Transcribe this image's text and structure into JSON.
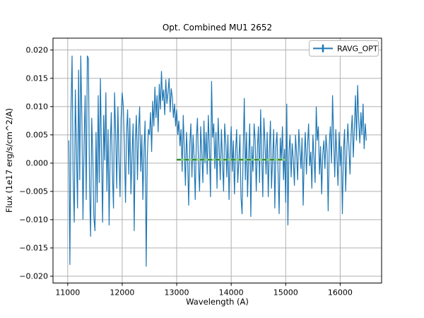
{
  "page": {
    "background": "#ffffff"
  },
  "chart_data": {
    "type": "line",
    "title": "Opt. Combined MU1 2652",
    "xlabel": "Wavelength (A)",
    "ylabel": "Flux (1e17 erg/s/cm^2/A)",
    "grid": true,
    "legend": {
      "label": "RAVG_OPT",
      "position": "upper right",
      "marker": "errorbar"
    },
    "xlim": [
      10730,
      16760
    ],
    "ylim": [
      -0.0212,
      0.0221
    ],
    "xticks": [
      11000,
      12000,
      13000,
      14000,
      15000,
      16000
    ],
    "xtick_labels": [
      "11000",
      "12000",
      "13000",
      "14000",
      "15000",
      "16000"
    ],
    "yticks": [
      0.02,
      0.015,
      0.01,
      0.005,
      0.0,
      -0.005,
      -0.01,
      -0.015,
      -0.02
    ],
    "ytick_labels": [
      "0.020",
      "0.015",
      "0.010",
      "0.005",
      "0.000",
      "−0.005",
      "−0.010",
      "−0.015",
      "−0.020"
    ],
    "colors": {
      "series": "#1f77b4",
      "overlay_solid": "#8fcf8f",
      "overlay_dash": "#2e8b2e",
      "grid": "#b0b0b0",
      "spine": "#000000",
      "legend_edge": "#b7b7b7"
    },
    "series": [
      {
        "name": "RAVG_OPT",
        "x_start": 11020,
        "x_step": 20,
        "flux_scale": 0.001,
        "values_milli": [
          4,
          -18,
          9,
          19,
          -2.5,
          -10.5,
          13,
          2,
          -8,
          16.5,
          -3,
          19,
          7.5,
          -10,
          3.5,
          12,
          -6.5,
          19,
          18.5,
          -4,
          -13,
          8,
          1.5,
          -9.5,
          -12,
          5.5,
          -7,
          12,
          -3.5,
          15,
          2,
          -10.5,
          8.5,
          0.5,
          12.5,
          -5,
          6,
          -11,
          3,
          9,
          -2,
          -8,
          12.5,
          5,
          -4.5,
          10,
          1,
          -6,
          8,
          12.5,
          10,
          3,
          -7,
          5.5,
          9.5,
          -2,
          8,
          -5.5,
          1.5,
          7,
          -12,
          4,
          8.5,
          -3,
          6,
          10,
          -1.5,
          5,
          -6.5,
          2.5,
          7.5,
          -18.3,
          1,
          6,
          5,
          9,
          2,
          11,
          6.5,
          13.5,
          8,
          12,
          5.5,
          14,
          9.5,
          16.3,
          11,
          13,
          8.5,
          14.8,
          10.5,
          12.5,
          15,
          9,
          13.2,
          11.5,
          8,
          10.5,
          6.5,
          9.5,
          5,
          7.5,
          3,
          6,
          -1.5,
          8.5,
          2.5,
          -4,
          5.5,
          0.5,
          -7.5,
          3.5,
          7,
          -2.5,
          5,
          1,
          -6.5,
          4,
          8,
          -0.5,
          -5,
          6.5,
          2,
          -3.5,
          7.5,
          0,
          5.5,
          -2,
          8.5,
          3,
          -6,
          14.5,
          4.5,
          7,
          -1,
          5.5,
          -4.5,
          8,
          2.5,
          -3,
          6,
          0.5,
          -5,
          7,
          3.5,
          -2.5,
          5,
          -6.5,
          1.5,
          6.5,
          -1.5,
          4,
          -5.5,
          2,
          6,
          -3.5,
          0.5,
          5,
          -6,
          -9,
          2,
          11.5,
          -3,
          5.5,
          -6,
          1,
          7,
          -9.5,
          3,
          -1.5,
          7,
          4,
          -5,
          2.5,
          6.5,
          -3.5,
          9.5,
          1.5,
          -6,
          8,
          3.5,
          -2,
          5.5,
          -6,
          2,
          7.5,
          -4.5,
          1,
          6,
          -8,
          3,
          5.5,
          -1.5,
          -9,
          4.5,
          0.5,
          6.5,
          -3,
          2.5,
          -7,
          10.5,
          -11,
          2,
          5,
          -2.5,
          3.5,
          0.5,
          -4,
          5,
          1.5,
          -3,
          6,
          2.5,
          -1,
          4.5,
          -7.5,
          1,
          5.5,
          -2,
          3,
          7,
          -0.5,
          2,
          -4.5,
          5,
          1,
          -3.5,
          10,
          4,
          6.5,
          -2,
          3,
          -5.5,
          1.5,
          4,
          -1,
          5,
          2,
          -8.5,
          3.5,
          6.5,
          0,
          12,
          4.5,
          -2.5,
          6,
          1,
          -4,
          5.5,
          -0.5,
          3,
          -9,
          2,
          6,
          -5,
          1.5,
          7,
          3,
          -2,
          5,
          8.5,
          1,
          6,
          12,
          4,
          13.8,
          7.5,
          3.5,
          9,
          5,
          10.5,
          2.5,
          7,
          4
        ]
      }
    ],
    "overlay_line": {
      "name": "zero-level-overlay",
      "x": [
        13000,
        15000
      ],
      "y_milli": 0.6
    }
  }
}
